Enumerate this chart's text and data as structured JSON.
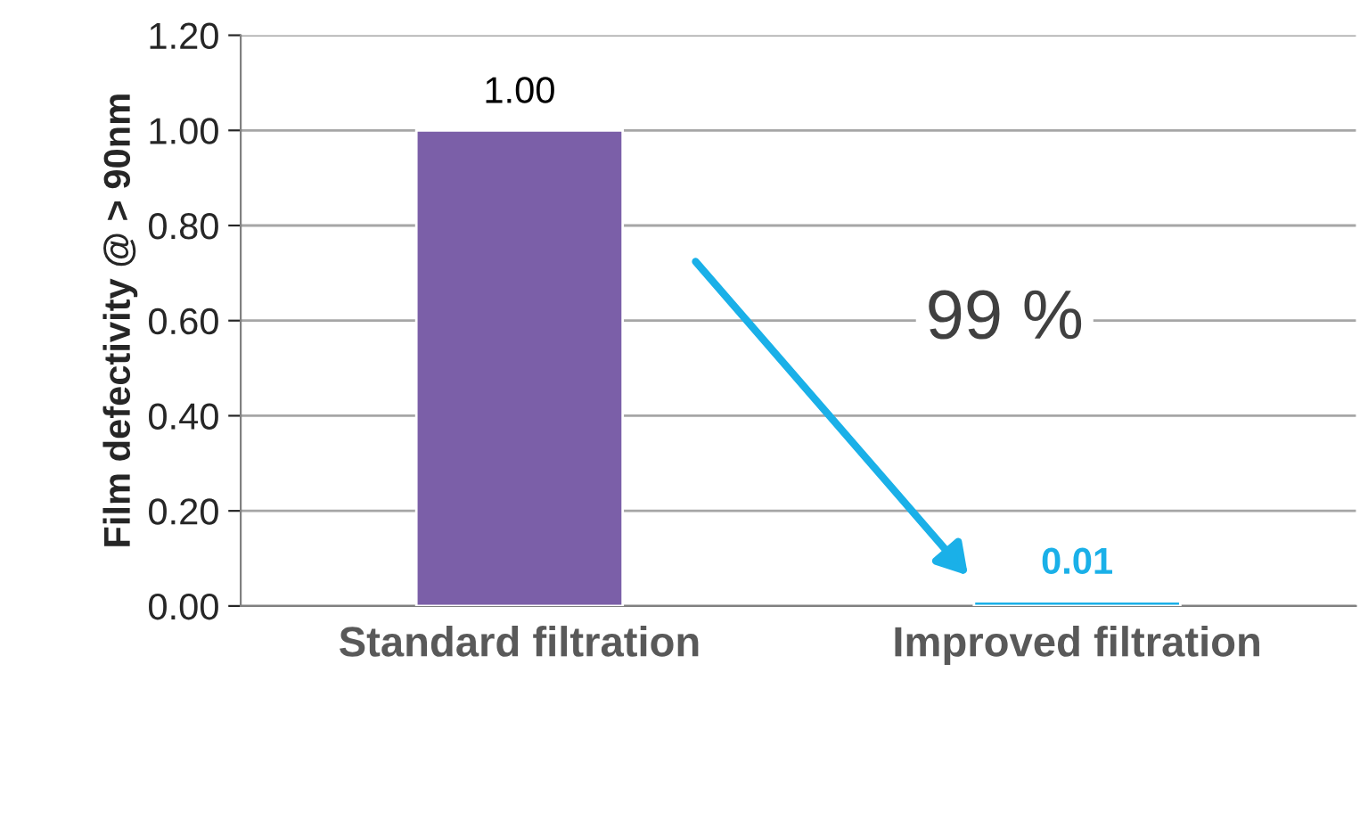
{
  "chart_data": {
    "type": "bar",
    "ylabel": "Film defectivity @ > 90nm",
    "categories": [
      "Standard filtration",
      "Improved filtration"
    ],
    "values": [
      1.0,
      0.01
    ],
    "colors": [
      "#7b5fa8",
      "#1ab0e8"
    ],
    "ylim": [
      0,
      1.2
    ],
    "yticks": [
      {
        "value": 0,
        "label": "0.00"
      },
      {
        "value": 0.2,
        "label": "0.20"
      },
      {
        "value": 0.4,
        "label": "0.40"
      },
      {
        "value": 0.6,
        "label": "0.60"
      },
      {
        "value": 0.8,
        "label": "0.80"
      },
      {
        "value": 1.0,
        "label": "1.00"
      },
      {
        "value": 1.2,
        "label": "1.20"
      }
    ],
    "grid": "y",
    "value_labels": [
      "1.00",
      "0.01"
    ],
    "annotations": [
      "99 %"
    ]
  }
}
